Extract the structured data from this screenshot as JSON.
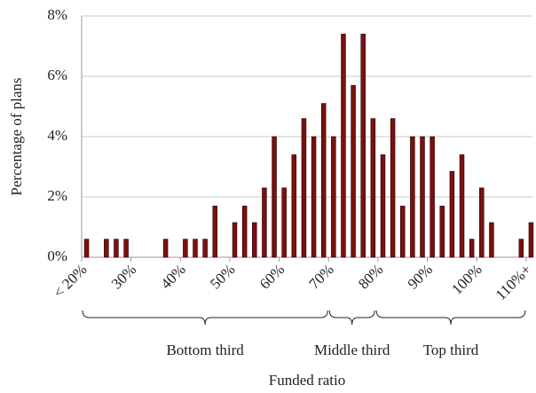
{
  "chart_data": {
    "type": "histogram",
    "x_label": "Funded ratio",
    "y_label": "Percentage of plans",
    "bins": [
      20,
      22,
      24,
      26,
      28,
      30,
      32,
      34,
      36,
      38,
      40,
      42,
      44,
      46,
      48,
      50,
      52,
      54,
      56,
      58,
      60,
      62,
      64,
      66,
      68,
      70,
      72,
      74,
      76,
      78,
      80,
      82,
      84,
      86,
      88,
      90,
      92,
      94,
      96,
      98,
      100,
      102,
      104,
      106,
      108,
      110,
      112
    ],
    "values": [
      0.6,
      0,
      0.6,
      0.6,
      0.6,
      0,
      0,
      0,
      0.6,
      0,
      0.6,
      0.6,
      0.6,
      1.7,
      0,
      1.15,
      1.7,
      1.15,
      2.3,
      4.0,
      2.3,
      3.4,
      4.6,
      4.0,
      5.1,
      4.0,
      7.4,
      5.7,
      7.4,
      4.6,
      3.4,
      4.6,
      1.7,
      4.0,
      4.0,
      4.0,
      1.7,
      2.85,
      3.4,
      0.6,
      2.3,
      1.15,
      0,
      0,
      0.6,
      1.15
    ],
    "color": "#7a1010",
    "xlim": [
      20,
      112
    ],
    "ylim": [
      0,
      8
    ],
    "yticks": [
      {
        "value": 0,
        "label": "0%"
      },
      {
        "value": 2,
        "label": "2%"
      },
      {
        "value": 4,
        "label": "4%"
      },
      {
        "value": 6,
        "label": "6%"
      },
      {
        "value": 8,
        "label": "8%"
      }
    ],
    "xticks": [
      {
        "value": 20,
        "label": "< 20%"
      },
      {
        "value": 30,
        "label": "30%"
      },
      {
        "value": 40,
        "label": "40%"
      },
      {
        "value": 50,
        "label": "50%"
      },
      {
        "value": 60,
        "label": "60%"
      },
      {
        "value": 70,
        "label": "70%"
      },
      {
        "value": 80,
        "label": "80%"
      },
      {
        "value": 90,
        "label": "90%"
      },
      {
        "value": 100,
        "label": "100%"
      },
      {
        "value": 110,
        "label": "110%+"
      }
    ],
    "grid": true,
    "annotations": [
      {
        "text": "Bottom third",
        "from": 20,
        "to": 70
      },
      {
        "text": "Middle third",
        "from": 70,
        "to": 79.5
      },
      {
        "text": "Top third",
        "from": 79.5,
        "to": 110
      }
    ]
  }
}
